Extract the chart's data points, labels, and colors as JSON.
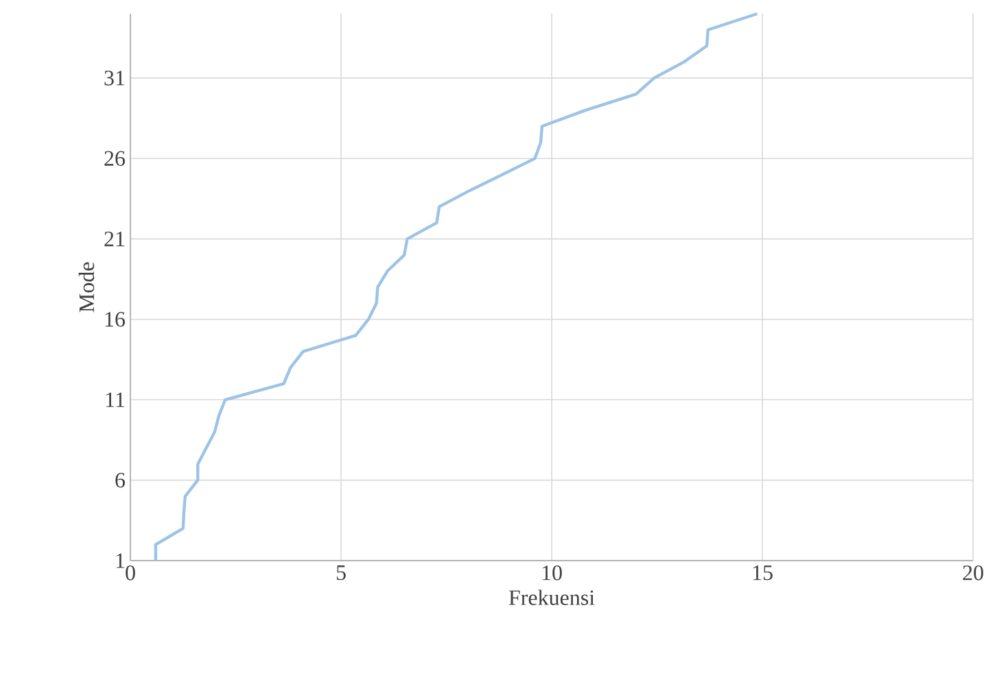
{
  "chart_data": {
    "type": "line",
    "xlabel": "Frekuensi",
    "ylabel": "Mode",
    "xlim": [
      0,
      20
    ],
    "xticks": [
      0,
      5,
      10,
      15,
      20
    ],
    "ylim": [
      1,
      35
    ],
    "yticks": [
      1,
      6,
      11,
      16,
      21,
      26,
      31
    ],
    "grid": true,
    "marker": "none",
    "line_style": "solid",
    "series": [
      {
        "color": "#9dc3e6",
        "x": [
          0.6,
          0.6,
          1.25,
          1.27,
          1.3,
          1.6,
          1.6,
          1.8,
          2.0,
          2.1,
          2.25,
          3.64,
          3.8,
          4.1,
          5.35,
          5.65,
          5.84,
          5.87,
          6.1,
          6.5,
          6.57,
          7.27,
          7.33,
          8.05,
          8.83,
          9.6,
          9.74,
          9.77,
          10.8,
          12.0,
          12.43,
          13.14,
          13.68,
          13.71,
          14.88
        ],
        "values": [
          1,
          2,
          3,
          4,
          5,
          6,
          7,
          8,
          9,
          10,
          11,
          12,
          13,
          14,
          15,
          16,
          17,
          18,
          19,
          20,
          21,
          22,
          23,
          24,
          25,
          26,
          27,
          28,
          29,
          30,
          31,
          32,
          33,
          34,
          35
        ]
      }
    ]
  }
}
